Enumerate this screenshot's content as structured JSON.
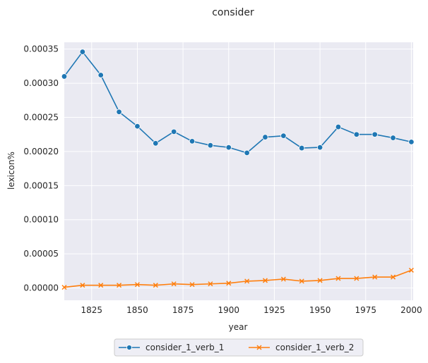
{
  "chart_data": {
    "type": "line",
    "title": "consider",
    "xlabel": "year",
    "ylabel": "lexicon%",
    "xlim": [
      1810,
      2001
    ],
    "ylim": [
      -1.8e-05,
      0.00036
    ],
    "xticks": [
      1825,
      1850,
      1875,
      1900,
      1925,
      1950,
      1975,
      2000
    ],
    "xtick_labels": [
      "1825",
      "1850",
      "1875",
      "1900",
      "1925",
      "1950",
      "1975",
      "2000"
    ],
    "yticks": [
      0,
      5e-05,
      0.0001,
      0.00015,
      0.0002,
      0.00025,
      0.0003,
      0.00035
    ],
    "ytick_labels": [
      "0.00000",
      "0.00005",
      "0.00010",
      "0.00015",
      "0.00020",
      "0.00025",
      "0.00030",
      "0.00035"
    ],
    "grid": true,
    "legend_position": "bottom-center",
    "x": [
      1810,
      1820,
      1830,
      1840,
      1850,
      1860,
      1870,
      1880,
      1890,
      1900,
      1910,
      1920,
      1930,
      1940,
      1950,
      1960,
      1970,
      1980,
      1990,
      2000
    ],
    "series": [
      {
        "name": "consider_1_verb_1",
        "marker": "circle",
        "color": "#1f77b4",
        "values": [
          0.00031,
          0.000346,
          0.000312,
          0.000258,
          0.000237,
          0.000212,
          0.000229,
          0.000215,
          0.000209,
          0.000206,
          0.000198,
          0.000221,
          0.000223,
          0.000205,
          0.000206,
          0.000236,
          0.000225,
          0.000225,
          0.00022,
          0.000214
        ]
      },
      {
        "name": "consider_1_verb_2",
        "marker": "x",
        "color": "#ff7f0e",
        "values": [
          1e-06,
          4e-06,
          4e-06,
          4e-06,
          5e-06,
          4e-06,
          6e-06,
          5e-06,
          6e-06,
          7e-06,
          1e-05,
          1.1e-05,
          1.3e-05,
          1e-05,
          1.1e-05,
          1.4e-05,
          1.4e-05,
          1.6e-05,
          1.6e-05,
          2.6e-05
        ]
      }
    ]
  },
  "colors": {
    "plot_background": "#eaeaf2",
    "grid": "#ffffff",
    "text": "#262626"
  }
}
